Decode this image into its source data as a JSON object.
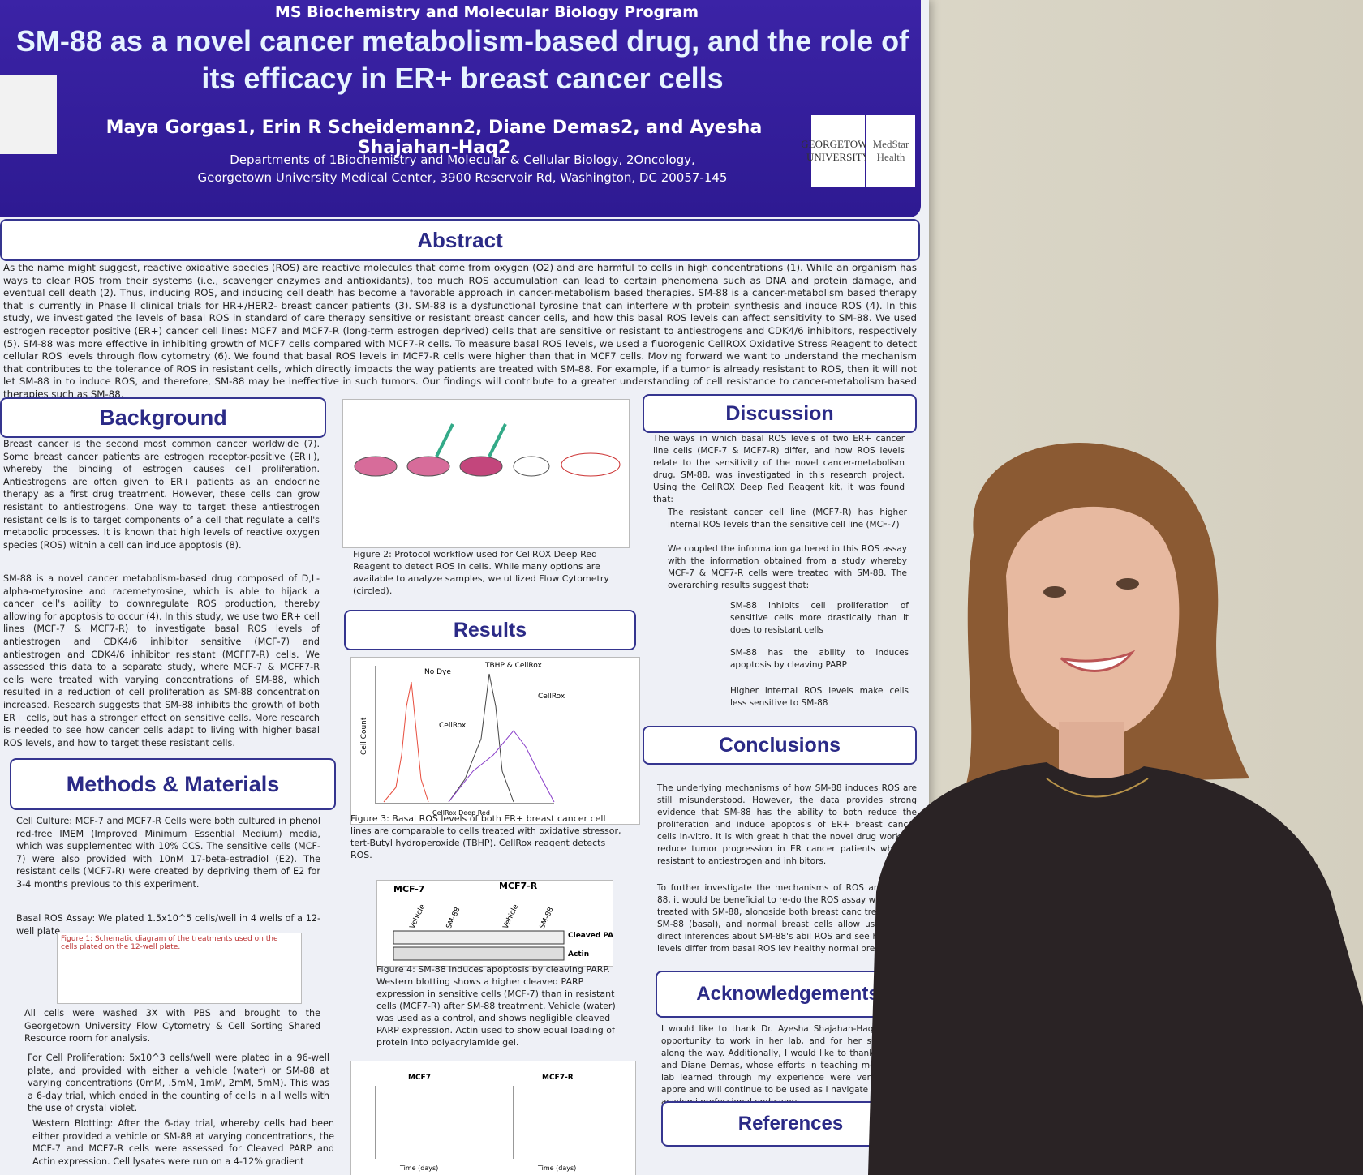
{
  "header": {
    "program": "MS Biochemistry and Molecular Biology Program",
    "title": "SM-88 as a novel cancer metabolism-based drug, and the role of its efficacy in ER+ breast cancer cells",
    "authors": "Maya Gorgas1, Erin R Scheidemann2, Diane Demas2, and Ayesha Shajahan-Haq2",
    "affiliation_1": "Departments of 1Biochemistry and Molecular & Cellular Biology, 2Oncology,",
    "affiliation_2": "Georgetown University Medical Center, 3900 Reservoir Rd, Washington, DC 20057-145",
    "logos": [
      "GEORGETOWN UNIVERSITY",
      "MedStar Health"
    ]
  },
  "abstract": {
    "heading": "Abstract",
    "text": "As the name might suggest, reactive oxidative species (ROS) are reactive molecules that come from oxygen (O2) and are harmful to cells in high concentrations (1). While an organism has ways to clear ROS from their systems (i.e., scavenger enzymes and antioxidants), too much ROS accumulation can lead to certain phenomena such as DNA and protein damage, and eventual cell death (2). Thus, inducing ROS, and inducing cell death has become a favorable approach in cancer-metabolism based therapies. SM-88 is a cancer-metabolism based therapy that is currently in Phase II clinical trials for HR+/HER2- breast cancer patients (3). SM-88 is a dysfunctional tyrosine that can interfere with protein synthesis and induce ROS (4). In this study, we investigated the levels of basal ROS in standard of care therapy sensitive or resistant breast cancer cells, and how this basal ROS levels can affect sensitivity to SM-88. We used estrogen receptor positive (ER+) cancer cell lines: MCF7 and MCF7-R (long-term estrogen deprived) cells that are sensitive or resistant to antiestrogens and CDK4/6 inhibitors, respectively (5). SM-88 was more effective in inhibiting growth of MCF7 cells compared with MCF7-R cells. To measure basal ROS levels, we used a fluorogenic CellROX Oxidative Stress Reagent to detect cellular ROS levels through flow cytometry (6). We found that basal ROS levels in MCF7-R cells were higher than that in MCF7 cells. Moving forward we want to understand the mechanism that contributes to the tolerance of ROS in resistant cells, which directly impacts the way patients are treated with SM-88. For example, if a tumor is already resistant to ROS, then it will not let SM-88 in to induce ROS, and therefore, SM-88 may be ineffective in such tumors. Our findings will contribute to a greater understanding of cell resistance to cancer-metabolism based therapies such as SM-88."
  },
  "background": {
    "heading": "Background",
    "paragraphs": [
      "Breast cancer is the second most common cancer worldwide (7). Some breast cancer patients are estrogen receptor-positive (ER+), whereby the binding of estrogen causes cell proliferation. Antiestrogens are often given to ER+ patients as an endocrine therapy as a first drug treatment. However, these cells can grow resistant to antiestrogens. One way to target these antiestrogen resistant cells is to target components of a cell that regulate a cell's metabolic processes. It is known that high levels of reactive oxygen species (ROS) within a cell can induce apoptosis (8).",
      "SM-88 is a novel cancer metabolism-based drug composed of D,L-alpha-metyrosine and racemetyrosine, which is able to hijack a cancer cell's ability to downregulate ROS production, thereby allowing for apoptosis to occur (4). In this study, we use two ER+ cell lines (MCF-7 & MCF7-R) to investigate basal ROS levels of antiestrogen and CDK4/6 inhibitor sensitive (MCF-7) and antiestrogen and CDK4/6 inhibitor resistant (MCFF7-R) cells. We assessed this data to a separate study, where MCF-7 & MCFF7-R cells were treated with varying concentrations of SM-88, which resulted in a reduction of cell proliferation as SM-88 concentration increased. Research suggests that SM-88 inhibits the growth of both ER+ cells, but has a stronger effect on sensitive cells. More research is needed to see how cancer cells adapt to living with higher basal ROS levels, and how to target these resistant cells."
    ]
  },
  "methods": {
    "heading": "Methods & Materials",
    "paragraphs": [
      "Cell Culture: MCF-7 and MCF7-R Cells were both cultured in phenol red-free IMEM (Improved Minimum Essential Medium) media, which was supplemented with 10% CCS. The sensitive cells (MCF-7) were also provided with 10nM 17-beta-estradiol (E2). The resistant cells (MCF7-R) were created by depriving them of E2 for 3-4 months previous to this experiment.",
      "Basal ROS Assay: We plated 1.5x10^5 cells/well in 4 wells of a 12-well plate.",
      "All cells were washed 3X with PBS and brought to the Georgetown University Flow Cytometry & Cell Sorting Shared Resource room for analysis.",
      "For Cell Proliferation: 5x10^3 cells/well were plated in a 96-well plate, and provided with either a vehicle (water) or SM-88 at varying concentrations (0mM, .5mM, 1mM, 2mM, 5mM). This was a 6-day trial, which ended in the counting of cells in all wells with the use of crystal violet.",
      "Western Blotting: After the 6-day trial, whereby cells had been either provided a vehicle or SM-88 at varying concentrations, the MCF-7 and MCF7-R cells were assessed for Cleaved PARP and Actin expression. Cell lysates were run on a 4-12% gradient"
    ],
    "figure1": "Figure 1: Schematic diagram of the treatments used on the cells plated on the 12-well plate."
  },
  "figures": {
    "figure2": "Figure 2: Protocol workflow used for CellROX Deep Red Reagent to detect ROS in cells. While many options are available to analyze samples, we utilized Flow Cytometry (circled).",
    "figure3": "Figure 3: Basal ROS levels of both ER+ breast cancer cell lines are comparable to cells treated with oxidative stressor, tert-Butyl hydroperoxide (TBHP). CellRox reagent detects ROS.",
    "figure3_labels": [
      "No Dye",
      "TBHP & CellRox",
      "CellRox",
      "CellRox",
      "Cell Count",
      "CellRox Deep Red"
    ],
    "figure4": "Figure 4: SM-88 induces apoptosis by cleaving PARP. Western blotting shows a higher cleaved PARP expression in sensitive cells (MCF-7) than in resistant cells (MCF7-R) after SM-88 treatment. Vehicle (water) was used as a control, and shows negligible cleaved PARP expression. Actin used to show equal loading of protein into polyacrylamide gel.",
    "figure4_labels": [
      "MCF-7",
      "MCF7-R",
      "Vehicle",
      "SM-88",
      "Vehicle",
      "SM-88",
      "Cleaved PARP",
      "Actin"
    ],
    "figure5_labels": [
      "MCF7",
      "MCF7-R",
      "Time (days)",
      "Time (days)"
    ]
  },
  "results": {
    "heading": "Results"
  },
  "discussion": {
    "heading": "Discussion",
    "intro": "The ways in which basal ROS levels of two ER+ cancer line cells (MCF-7 & MCF7-R) differ, and how ROS levels relate to the sensitivity of the novel cancer-metabolism drug, SM-88, was investigated in this research project. Using the CellROX Deep Red Reagent kit, it was found that:",
    "bullets": [
      "The resistant cancer cell line (MCF7-R) has higher internal ROS levels than the sensitive cell line (MCF-7)",
      "We coupled the information gathered in this ROS assay with the information obtained from a study whereby MCF-7 & MCF7-R cells were treated with SM-88. The overarching results suggest that:"
    ],
    "sub_bullets": [
      "SM-88 inhibits cell proliferation of sensitive cells more drastically than it does to resistant cells",
      "SM-88 has the ability to induces apoptosis by cleaving PARP",
      "Higher internal ROS levels make cells less sensitive to SM-88"
    ]
  },
  "conclusions": {
    "heading": "Conclusions",
    "paragraphs": [
      "The underlying mechanisms of how SM-88 induces ROS are still misunderstood. However, the data provides strong evidence that SM-88 has the ability to both reduce the proliferation and induce apoptosis of ER+ breast cancer cells in-vitro. It is with great h that the novel drug works to reduce tumor progression in ER cancer patients who are resistant to antiestrogen and inhibitors.",
      "To further investigate the mechanisms of ROS and how it 88, it would be beneficial to re-do the ROS assay with b cells treated with SM-88, alongside both breast canc treated with SM-88 (basal), and normal breast cells allow us to make direct inferences about SM-88's abil ROS and see how those levels differ from basal ROS lev healthy normal breast cells."
    ]
  },
  "acknowledgements": {
    "heading": "Acknowledgements",
    "text": "I would like to thank Dr. Ayesha Shajahan-Haq for giving opportunity to work in her lab, and for her support and along the way. Additionally, I would like to thank Erin Schei and Diane Demas, whose efforts in teaching me the many lab learned through my experience were very much so appre and will continue to be used as I navigate through my academi professional endeavors."
  },
  "references": {
    "heading": "References"
  }
}
